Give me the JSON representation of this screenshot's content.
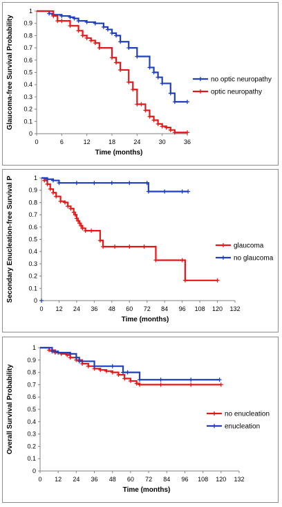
{
  "chart_data": [
    {
      "type": "line",
      "step": true,
      "xlabel": "Time (months)",
      "ylabel": "Glaucoma-free Survival Probability",
      "xlim": [
        0,
        36
      ],
      "ylim": [
        0,
        1
      ],
      "x_ticks": [
        "0",
        "6",
        "12",
        "18",
        "24",
        "30",
        "36"
      ],
      "y_ticks": [
        "0",
        "0.1",
        "0.2",
        "0.3",
        "0.4",
        "0.5",
        "0.6",
        "0.7",
        "0.8",
        "0.9",
        "1"
      ],
      "legend_position": "right",
      "series": [
        {
          "name": "no optic neuropathy",
          "color": "#1f3fbf",
          "x": [
            0,
            3,
            4,
            6,
            8,
            9,
            10,
            12,
            14,
            16,
            17,
            18,
            19,
            20,
            22,
            24,
            27,
            28,
            29,
            30,
            32,
            33,
            36
          ],
          "y": [
            1,
            0.98,
            0.97,
            0.96,
            0.95,
            0.94,
            0.92,
            0.91,
            0.9,
            0.87,
            0.85,
            0.82,
            0.8,
            0.75,
            0.7,
            0.63,
            0.54,
            0.5,
            0.46,
            0.41,
            0.33,
            0.26,
            0.26
          ]
        },
        {
          "name": "optic neuropathy",
          "color": "#e81717",
          "x": [
            0,
            4,
            5,
            6,
            8,
            10,
            11,
            12,
            13,
            14,
            15,
            18,
            19,
            20,
            22,
            23,
            24,
            25,
            26,
            27,
            28,
            29,
            30,
            31,
            32,
            33,
            36
          ],
          "y": [
            1,
            0.96,
            0.92,
            0.92,
            0.88,
            0.84,
            0.8,
            0.78,
            0.76,
            0.74,
            0.7,
            0.62,
            0.58,
            0.52,
            0.42,
            0.36,
            0.24,
            0.24,
            0.19,
            0.14,
            0.11,
            0.08,
            0.06,
            0.05,
            0.03,
            0.01,
            0.01
          ]
        }
      ]
    },
    {
      "type": "line",
      "step": true,
      "xlabel": "Time (months)",
      "ylabel": "Secondary  Enucleation-free Survival P",
      "xlim": [
        0,
        132
      ],
      "ylim": [
        0,
        1
      ],
      "x_ticks": [
        "0",
        "12",
        "24",
        "36",
        "48",
        "60",
        "72",
        "84",
        "96",
        "108",
        "120",
        "132"
      ],
      "y_ticks": [
        "0",
        "0.1",
        "0.2",
        "0.3",
        "0.4",
        "0.5",
        "0.6",
        "0.7",
        "0.8",
        "0.9",
        "1"
      ],
      "legend_position": "right",
      "series": [
        {
          "name": "glaucoma",
          "color": "#e81717",
          "x": [
            0,
            2,
            4,
            6,
            8,
            10,
            13,
            16,
            18,
            20,
            22,
            23,
            24,
            25,
            26,
            27,
            28,
            30,
            34,
            40,
            42,
            50,
            60,
            70,
            78,
            96,
            98,
            120
          ],
          "y": [
            1,
            0.98,
            0.95,
            0.91,
            0.88,
            0.85,
            0.81,
            0.8,
            0.77,
            0.75,
            0.72,
            0.7,
            0.67,
            0.65,
            0.63,
            0.61,
            0.59,
            0.57,
            0.57,
            0.49,
            0.44,
            0.44,
            0.44,
            0.44,
            0.33,
            0.33,
            0.165,
            0.165
          ]
        },
        {
          "name": "no glaucoma",
          "color": "#1f3fbf",
          "x": [
            0,
            4,
            8,
            12,
            24,
            36,
            48,
            60,
            72,
            73,
            84,
            96,
            100
          ],
          "y": [
            1,
            0.99,
            0.98,
            0.96,
            0.96,
            0.96,
            0.96,
            0.96,
            0.96,
            0.89,
            0.89,
            0.89,
            0.89
          ]
        }
      ],
      "markers": [
        {
          "x": 0,
          "y": 0,
          "color": "#1f3fbf"
        }
      ]
    },
    {
      "type": "line",
      "step": true,
      "xlabel": "Time (months)",
      "ylabel": "Overall Survival Probability",
      "xlim": [
        0,
        132
      ],
      "ylim": [
        0,
        1
      ],
      "x_ticks": [
        "0",
        "12",
        "24",
        "36",
        "48",
        "60",
        "72",
        "84",
        "96",
        "108",
        "120",
        "132"
      ],
      "y_ticks": [
        "0",
        "0.1",
        "0.2",
        "0.3",
        "0.4",
        "0.5",
        "0.6",
        "0.7",
        "0.8",
        "0.9",
        "1"
      ],
      "legend_position": "right",
      "series": [
        {
          "name": "no enucleation",
          "color": "#e81717",
          "x": [
            0,
            6,
            10,
            14,
            18,
            20,
            24,
            28,
            32,
            36,
            40,
            44,
            48,
            52,
            56,
            60,
            64,
            66,
            80,
            100,
            120
          ],
          "y": [
            1,
            0.98,
            0.96,
            0.95,
            0.94,
            0.92,
            0.9,
            0.87,
            0.85,
            0.83,
            0.82,
            0.81,
            0.8,
            0.78,
            0.75,
            0.73,
            0.71,
            0.7,
            0.7,
            0.7,
            0.7
          ]
        },
        {
          "name": "enucleation",
          "color": "#1f3fbf",
          "x": [
            0,
            8,
            12,
            20,
            24,
            26,
            36,
            48,
            55,
            58,
            66,
            80,
            100,
            119
          ],
          "y": [
            1,
            0.97,
            0.96,
            0.95,
            0.92,
            0.89,
            0.85,
            0.85,
            0.8,
            0.8,
            0.74,
            0.74,
            0.74,
            0.74
          ]
        }
      ]
    }
  ]
}
